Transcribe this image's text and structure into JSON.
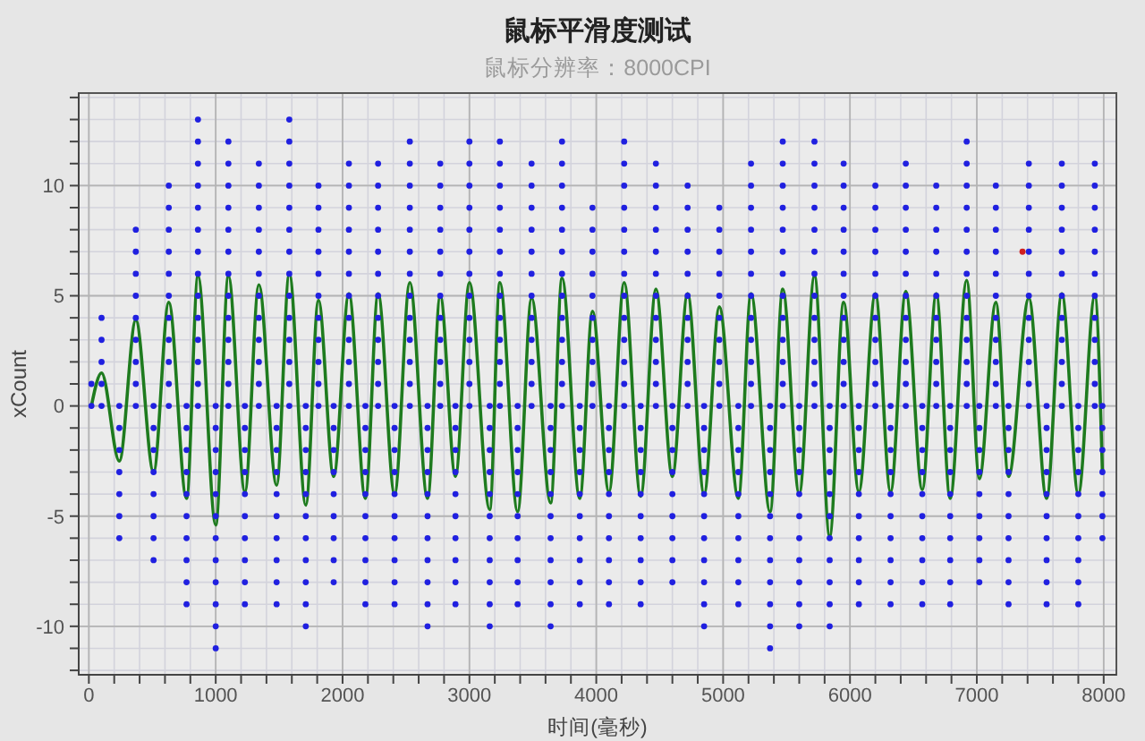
{
  "chart_data": {
    "type": "scatter",
    "title": "鼠标平滑度测试",
    "subtitle": "鼠标分辨率：8000CPI",
    "xlabel": "时间(毫秒)",
    "ylabel": "xCount",
    "xlim": [
      -80,
      8100
    ],
    "ylim": [
      -12.2,
      14.2
    ],
    "xticks": [
      0,
      {
        "value": 200,
        "label": null
      },
      {
        "value": 400,
        "label": null
      },
      {
        "value": 600,
        "label": null
      },
      {
        "value": 800,
        "label": null
      },
      1000,
      {
        "value": 1200,
        "label": null
      },
      {
        "value": 1400,
        "label": null
      },
      {
        "value": 1600,
        "label": null
      },
      {
        "value": 1800,
        "label": null
      },
      2000,
      {
        "value": 2200,
        "label": null
      },
      {
        "value": 2400,
        "label": null
      },
      {
        "value": 2600,
        "label": null
      },
      {
        "value": 2800,
        "label": null
      },
      3000,
      {
        "value": 3200,
        "label": null
      },
      {
        "value": 3400,
        "label": null
      },
      {
        "value": 3600,
        "label": null
      },
      {
        "value": 3800,
        "label": null
      },
      4000,
      {
        "value": 4200,
        "label": null
      },
      {
        "value": 4400,
        "label": null
      },
      {
        "value": 4600,
        "label": null
      },
      {
        "value": 4800,
        "label": null
      },
      5000,
      {
        "value": 5200,
        "label": null
      },
      {
        "value": 5400,
        "label": null
      },
      {
        "value": 5600,
        "label": null
      },
      {
        "value": 5800,
        "label": null
      },
      6000,
      {
        "value": 6200,
        "label": null
      },
      {
        "value": 6400,
        "label": null
      },
      {
        "value": 6600,
        "label": null
      },
      {
        "value": 6800,
        "label": null
      },
      7000,
      {
        "value": 7200,
        "label": null
      },
      {
        "value": 7400,
        "label": null
      },
      {
        "value": 7600,
        "label": null
      },
      {
        "value": 7800,
        "label": null
      },
      8000
    ],
    "yticks": [
      {
        "value": -12,
        "label": null
      },
      {
        "value": -11,
        "label": null
      },
      -10,
      {
        "value": -9,
        "label": null
      },
      {
        "value": -8,
        "label": null
      },
      {
        "value": -7,
        "label": null
      },
      {
        "value": -6,
        "label": null
      },
      -5,
      {
        "value": -4,
        "label": null
      },
      {
        "value": -3,
        "label": null
      },
      {
        "value": -2,
        "label": null
      },
      {
        "value": -1,
        "label": null
      },
      0,
      {
        "value": 1,
        "label": null
      },
      {
        "value": 2,
        "label": null
      },
      {
        "value": 3,
        "label": null
      },
      {
        "value": 4,
        "label": null
      },
      5,
      {
        "value": 6,
        "label": null
      },
      {
        "value": 7,
        "label": null
      },
      {
        "value": 8,
        "label": null
      },
      {
        "value": 9,
        "label": null
      },
      10,
      {
        "value": 11,
        "label": null
      },
      {
        "value": 12,
        "label": null
      },
      {
        "value": 13,
        "label": null
      },
      {
        "value": 14,
        "label": null
      }
    ],
    "grid": true,
    "marker": "circle",
    "series": [
      {
        "type": "line",
        "color": "#1e7b1e",
        "marker": "none",
        "line_style": "solid",
        "x": [
          20,
          100,
          240,
          370,
          510,
          630,
          770,
          860,
          1000,
          1100,
          1230,
          1340,
          1480,
          1580,
          1710,
          1810,
          1930,
          2050,
          2180,
          2280,
          2410,
          2530,
          2670,
          2770,
          2890,
          3000,
          3160,
          3240,
          3380,
          3490,
          3640,
          3730,
          3870,
          3970,
          4100,
          4220,
          4350,
          4470,
          4600,
          4720,
          4850,
          4970,
          5120,
          5220,
          5370,
          5470,
          5600,
          5720,
          5840,
          5950,
          6070,
          6200,
          6320,
          6440,
          6570,
          6680,
          6790,
          6920,
          7020,
          7150,
          7250,
          7410,
          7550,
          7670,
          7800,
          7930,
          7990
        ],
        "values": [
          0,
          1.5,
          -2.5,
          3.9,
          -3,
          4.7,
          -4.2,
          5.9,
          -5.4,
          5.9,
          -3.9,
          5.5,
          -3.6,
          6,
          -4.5,
          4.8,
          -3.2,
          5.1,
          -4.2,
          5.1,
          -4,
          5.6,
          -4.2,
          5,
          -3.2,
          5.6,
          -4.7,
          5.6,
          -4.8,
          4.9,
          -4.4,
          5.8,
          -4.2,
          4.3,
          -3.9,
          5.6,
          -4.1,
          5.3,
          -3.2,
          5.1,
          -4,
          4.5,
          -4.2,
          5.1,
          -4.8,
          5.3,
          -4,
          5.9,
          -5.9,
          4.7,
          -3.9,
          5.1,
          -3.9,
          5.2,
          -3.8,
          5.1,
          -4.2,
          5.7,
          -3.3,
          4.7,
          -3.2,
          4.9,
          -4.2,
          5.1,
          -4,
          5,
          -3
        ]
      },
      {
        "color": "#2020e0",
        "x": [
          20,
          20,
          100,
          100,
          100,
          100,
          100,
          240,
          240,
          240,
          240,
          240,
          240,
          240,
          370,
          370,
          370,
          370,
          370,
          370,
          370,
          370,
          370,
          510,
          510,
          510,
          510,
          510,
          510,
          510,
          510,
          630,
          630,
          630,
          630,
          630,
          630,
          630,
          630,
          630,
          630,
          630,
          770,
          770,
          770,
          770,
          770,
          770,
          770,
          770,
          770,
          770,
          860,
          860,
          860,
          860,
          860,
          860,
          860,
          860,
          860,
          860,
          860,
          860,
          860,
          860,
          1000,
          1000,
          1000,
          1000,
          1000,
          1000,
          1000,
          1000,
          1000,
          1000,
          1000,
          1000,
          1100,
          1100,
          1100,
          1100,
          1100,
          1100,
          1100,
          1100,
          1100,
          1100,
          1100,
          1100,
          1100,
          1230,
          1230,
          1230,
          1230,
          1230,
          1230,
          1230,
          1230,
          1230,
          1230,
          1340,
          1340,
          1340,
          1340,
          1340,
          1340,
          1340,
          1340,
          1340,
          1340,
          1340,
          1340,
          1480,
          1480,
          1480,
          1480,
          1480,
          1480,
          1480,
          1480,
          1480,
          1480,
          1580,
          1580,
          1580,
          1580,
          1580,
          1580,
          1580,
          1580,
          1580,
          1580,
          1580,
          1580,
          1580,
          1580,
          1710,
          1710,
          1710,
          1710,
          1710,
          1710,
          1710,
          1710,
          1710,
          1710,
          1710,
          1810,
          1810,
          1810,
          1810,
          1810,
          1810,
          1810,
          1810,
          1810,
          1810,
          1810,
          1930,
          1930,
          1930,
          1930,
          1930,
          1930,
          1930,
          1930,
          1930,
          2050,
          2050,
          2050,
          2050,
          2050,
          2050,
          2050,
          2050,
          2050,
          2050,
          2050,
          2050,
          2180,
          2180,
          2180,
          2180,
          2180,
          2180,
          2180,
          2180,
          2180,
          2180,
          2280,
          2280,
          2280,
          2280,
          2280,
          2280,
          2280,
          2280,
          2280,
          2280,
          2280,
          2280,
          2410,
          2410,
          2410,
          2410,
          2410,
          2410,
          2410,
          2410,
          2410,
          2410,
          2530,
          2530,
          2530,
          2530,
          2530,
          2530,
          2530,
          2530,
          2530,
          2530,
          2530,
          2530,
          2530,
          2670,
          2670,
          2670,
          2670,
          2670,
          2670,
          2670,
          2670,
          2670,
          2670,
          2670,
          2770,
          2770,
          2770,
          2770,
          2770,
          2770,
          2770,
          2770,
          2770,
          2770,
          2770,
          2770,
          2890,
          2890,
          2890,
          2890,
          2890,
          2890,
          2890,
          2890,
          2890,
          2890,
          3000,
          3000,
          3000,
          3000,
          3000,
          3000,
          3000,
          3000,
          3000,
          3000,
          3000,
          3000,
          3000,
          3160,
          3160,
          3160,
          3160,
          3160,
          3160,
          3160,
          3160,
          3160,
          3160,
          3160,
          3240,
          3240,
          3240,
          3240,
          3240,
          3240,
          3240,
          3240,
          3240,
          3240,
          3240,
          3240,
          3240,
          3380,
          3380,
          3380,
          3380,
          3380,
          3380,
          3380,
          3380,
          3380,
          3380,
          3490,
          3490,
          3490,
          3490,
          3490,
          3490,
          3490,
          3490,
          3490,
          3490,
          3490,
          3490,
          3640,
          3640,
          3640,
          3640,
          3640,
          3640,
          3640,
          3640,
          3640,
          3640,
          3640,
          3730,
          3730,
          3730,
          3730,
          3730,
          3730,
          3730,
          3730,
          3730,
          3730,
          3730,
          3730,
          3730,
          3870,
          3870,
          3870,
          3870,
          3870,
          3870,
          3870,
          3870,
          3870,
          3870,
          3970,
          3970,
          3970,
          3970,
          3970,
          3970,
          3970,
          3970,
          3970,
          3970,
          4100,
          4100,
          4100,
          4100,
          4100,
          4100,
          4100,
          4100,
          4100,
          4100,
          4220,
          4220,
          4220,
          4220,
          4220,
          4220,
          4220,
          4220,
          4220,
          4220,
          4220,
          4220,
          4220,
          4350,
          4350,
          4350,
          4350,
          4350,
          4350,
          4350,
          4350,
          4350,
          4350,
          4470,
          4470,
          4470,
          4470,
          4470,
          4470,
          4470,
          4470,
          4470,
          4470,
          4470,
          4470,
          4600,
          4600,
          4600,
          4600,
          4600,
          4600,
          4600,
          4600,
          4600,
          4720,
          4720,
          4720,
          4720,
          4720,
          4720,
          4720,
          4720,
          4720,
          4720,
          4720,
          4850,
          4850,
          4850,
          4850,
          4850,
          4850,
          4850,
          4850,
          4850,
          4850,
          4850,
          4970,
          4970,
          4970,
          4970,
          4970,
          4970,
          4970,
          4970,
          4970,
          4970,
          5120,
          5120,
          5120,
          5120,
          5120,
          5120,
          5120,
          5120,
          5120,
          5120,
          5220,
          5220,
          5220,
          5220,
          5220,
          5220,
          5220,
          5220,
          5220,
          5220,
          5220,
          5220,
          5370,
          5370,
          5370,
          5370,
          5370,
          5370,
          5370,
          5370,
          5370,
          5370,
          5370,
          5370,
          5470,
          5470,
          5470,
          5470,
          5470,
          5470,
          5470,
          5470,
          5470,
          5470,
          5470,
          5470,
          5470,
          5600,
          5600,
          5600,
          5600,
          5600,
          5600,
          5600,
          5600,
          5600,
          5600,
          5600,
          5720,
          5720,
          5720,
          5720,
          5720,
          5720,
          5720,
          5720,
          5720,
          5720,
          5720,
          5720,
          5720,
          5840,
          5840,
          5840,
          5840,
          5840,
          5840,
          5840,
          5840,
          5840,
          5840,
          5840,
          5950,
          5950,
          5950,
          5950,
          5950,
          5950,
          5950,
          5950,
          5950,
          5950,
          5950,
          5950,
          6070,
          6070,
          6070,
          6070,
          6070,
          6070,
          6070,
          6070,
          6070,
          6070,
          6200,
          6200,
          6200,
          6200,
          6200,
          6200,
          6200,
          6200,
          6200,
          6200,
          6200,
          6320,
          6320,
          6320,
          6320,
          6320,
          6320,
          6320,
          6320,
          6320,
          6320,
          6440,
          6440,
          6440,
          6440,
          6440,
          6440,
          6440,
          6440,
          6440,
          6440,
          6440,
          6440,
          6570,
          6570,
          6570,
          6570,
          6570,
          6570,
          6570,
          6570,
          6570,
          6570,
          6680,
          6680,
          6680,
          6680,
          6680,
          6680,
          6680,
          6680,
          6680,
          6680,
          6680,
          6790,
          6790,
          6790,
          6790,
          6790,
          6790,
          6790,
          6790,
          6790,
          6790,
          6920,
          6920,
          6920,
          6920,
          6920,
          6920,
          6920,
          6920,
          6920,
          6920,
          6920,
          6920,
          6920,
          7020,
          7020,
          7020,
          7020,
          7020,
          7020,
          7020,
          7020,
          7020,
          7150,
          7150,
          7150,
          7150,
          7150,
          7150,
          7150,
          7150,
          7150,
          7150,
          7150,
          7250,
          7250,
          7250,
          7250,
          7250,
          7250,
          7250,
          7250,
          7250,
          7250,
          7410,
          7410,
          7410,
          7410,
          7410,
          7410,
          7410,
          7410,
          7410,
          7410,
          7410,
          7410,
          7550,
          7550,
          7550,
          7550,
          7550,
          7550,
          7550,
          7550,
          7550,
          7550,
          7670,
          7670,
          7670,
          7670,
          7670,
          7670,
          7670,
          7670,
          7670,
          7670,
          7670,
          7670,
          7800,
          7800,
          7800,
          7800,
          7800,
          7800,
          7800,
          7800,
          7800,
          7800,
          7930,
          7930,
          7930,
          7930,
          7930,
          7930,
          7930,
          7930,
          7930,
          7930,
          7930,
          7930,
          7990,
          7990,
          7990,
          7990,
          7990,
          7990,
          7990
        ],
        "values": [
          0,
          1,
          0,
          1,
          2,
          3,
          4,
          0,
          -1,
          -2,
          -3,
          -4,
          -5,
          -6,
          0,
          1,
          2,
          3,
          4,
          5,
          6,
          7,
          8,
          0,
          -1,
          -2,
          -3,
          -4,
          -5,
          -6,
          -7,
          0,
          1,
          2,
          3,
          4,
          5,
          6,
          7,
          8,
          9,
          10,
          0,
          -1,
          -2,
          -3,
          -4,
          -5,
          -6,
          -7,
          -8,
          -9,
          0,
          1,
          2,
          3,
          4,
          5,
          6,
          7,
          8,
          9,
          10,
          11,
          12,
          13,
          0,
          -1,
          -2,
          -3,
          -4,
          -5,
          -6,
          -7,
          -8,
          -9,
          -10,
          -11,
          0,
          1,
          2,
          3,
          4,
          5,
          6,
          7,
          8,
          9,
          10,
          11,
          12,
          0,
          -1,
          -2,
          -3,
          -4,
          -5,
          -6,
          -7,
          -8,
          -9,
          0,
          1,
          2,
          3,
          4,
          5,
          6,
          7,
          8,
          9,
          10,
          11,
          0,
          -1,
          -2,
          -3,
          -4,
          -5,
          -6,
          -7,
          -8,
          -9,
          0,
          1,
          2,
          3,
          4,
          5,
          6,
          7,
          8,
          9,
          10,
          11,
          12,
          13,
          0,
          -1,
          -2,
          -3,
          -4,
          -5,
          -6,
          -7,
          -8,
          -9,
          -10,
          0,
          1,
          2,
          3,
          4,
          5,
          6,
          7,
          8,
          9,
          10,
          0,
          -1,
          -2,
          -3,
          -4,
          -5,
          -6,
          -7,
          -8,
          0,
          1,
          2,
          3,
          4,
          5,
          6,
          7,
          8,
          9,
          10,
          11,
          0,
          -1,
          -2,
          -3,
          -4,
          -5,
          -6,
          -7,
          -8,
          -9,
          0,
          1,
          2,
          3,
          4,
          5,
          6,
          7,
          8,
          9,
          10,
          11,
          0,
          -1,
          -2,
          -3,
          -4,
          -5,
          -6,
          -7,
          -8,
          -9,
          0,
          1,
          2,
          3,
          4,
          5,
          6,
          7,
          8,
          9,
          10,
          11,
          12,
          0,
          -1,
          -2,
          -3,
          -4,
          -5,
          -6,
          -7,
          -8,
          -9,
          -10,
          0,
          1,
          2,
          3,
          4,
          5,
          6,
          7,
          8,
          9,
          10,
          11,
          0,
          -1,
          -2,
          -3,
          -4,
          -5,
          -6,
          -7,
          -8,
          -9,
          0,
          1,
          2,
          3,
          4,
          5,
          6,
          7,
          8,
          9,
          10,
          11,
          12,
          0,
          -1,
          -2,
          -3,
          -4,
          -5,
          -6,
          -7,
          -8,
          -9,
          -10,
          0,
          1,
          2,
          3,
          4,
          5,
          6,
          7,
          8,
          9,
          10,
          11,
          12,
          0,
          -1,
          -2,
          -3,
          -4,
          -5,
          -6,
          -7,
          -8,
          -9,
          0,
          1,
          2,
          3,
          4,
          5,
          6,
          7,
          8,
          9,
          10,
          11,
          0,
          -1,
          -2,
          -3,
          -4,
          -5,
          -6,
          -7,
          -8,
          -9,
          -10,
          0,
          1,
          2,
          3,
          4,
          5,
          6,
          7,
          8,
          9,
          10,
          11,
          12,
          0,
          -1,
          -2,
          -3,
          -4,
          -5,
          -6,
          -7,
          -8,
          -9,
          0,
          1,
          2,
          3,
          4,
          5,
          6,
          7,
          8,
          9,
          0,
          -1,
          -2,
          -3,
          -4,
          -5,
          -6,
          -7,
          -8,
          -9,
          0,
          1,
          2,
          3,
          4,
          5,
          6,
          7,
          8,
          9,
          10,
          11,
          12,
          0,
          -1,
          -2,
          -3,
          -4,
          -5,
          -6,
          -7,
          -8,
          -9,
          0,
          1,
          2,
          3,
          4,
          5,
          6,
          7,
          8,
          9,
          10,
          11,
          0,
          -1,
          -2,
          -3,
          -4,
          -5,
          -6,
          -7,
          -8,
          0,
          1,
          2,
          3,
          4,
          5,
          6,
          7,
          8,
          9,
          10,
          0,
          -1,
          -2,
          -3,
          -4,
          -5,
          -6,
          -7,
          -8,
          -9,
          -10,
          0,
          1,
          2,
          3,
          4,
          5,
          6,
          7,
          8,
          9,
          0,
          -1,
          -2,
          -3,
          -4,
          -5,
          -6,
          -7,
          -8,
          -9,
          0,
          1,
          2,
          3,
          4,
          5,
          6,
          7,
          8,
          9,
          10,
          11,
          0,
          -1,
          -2,
          -3,
          -4,
          -5,
          -6,
          -7,
          -8,
          -9,
          -10,
          -11,
          0,
          1,
          2,
          3,
          4,
          5,
          6,
          7,
          8,
          9,
          10,
          11,
          12,
          0,
          -1,
          -2,
          -3,
          -4,
          -5,
          -6,
          -7,
          -8,
          -9,
          -10,
          0,
          1,
          2,
          3,
          4,
          5,
          6,
          7,
          8,
          9,
          10,
          11,
          12,
          0,
          -1,
          -2,
          -3,
          -4,
          -5,
          -6,
          -7,
          -8,
          -9,
          -10,
          0,
          1,
          2,
          3,
          4,
          5,
          6,
          7,
          8,
          9,
          10,
          11,
          0,
          -1,
          -2,
          -3,
          -4,
          -5,
          -6,
          -7,
          -8,
          -9,
          0,
          1,
          2,
          3,
          4,
          5,
          6,
          7,
          8,
          9,
          10,
          0,
          -1,
          -2,
          -3,
          -4,
          -5,
          -6,
          -7,
          -8,
          -9,
          0,
          1,
          2,
          3,
          4,
          5,
          6,
          7,
          8,
          9,
          10,
          11,
          0,
          -1,
          -2,
          -3,
          -4,
          -5,
          -6,
          -7,
          -8,
          -9,
          0,
          1,
          2,
          3,
          4,
          5,
          6,
          7,
          8,
          9,
          10,
          0,
          -1,
          -2,
          -3,
          -4,
          -5,
          -6,
          -7,
          -8,
          -9,
          0,
          1,
          2,
          3,
          4,
          5,
          6,
          7,
          8,
          9,
          10,
          11,
          12,
          0,
          -1,
          -2,
          -3,
          -4,
          -5,
          -6,
          -7,
          -8,
          0,
          1,
          2,
          3,
          4,
          5,
          6,
          7,
          8,
          9,
          10,
          0,
          -1,
          -2,
          -3,
          -4,
          -5,
          -6,
          -7,
          -8,
          -9,
          0,
          1,
          2,
          3,
          4,
          5,
          6,
          7,
          8,
          9,
          10,
          11,
          0,
          -1,
          -2,
          -3,
          -4,
          -5,
          -6,
          -7,
          -8,
          -9,
          0,
          1,
          2,
          3,
          4,
          5,
          6,
          7,
          8,
          9,
          10,
          11,
          0,
          -1,
          -2,
          -3,
          -4,
          -5,
          -6,
          -7,
          -8,
          -9,
          0,
          1,
          2,
          3,
          4,
          5,
          6,
          7,
          8,
          9,
          10,
          11,
          0,
          -1,
          -2,
          -3,
          -4,
          -5,
          -6
        ]
      },
      {
        "color": "#d02020",
        "x": [
          7360
        ],
        "values": [
          7
        ]
      }
    ]
  }
}
